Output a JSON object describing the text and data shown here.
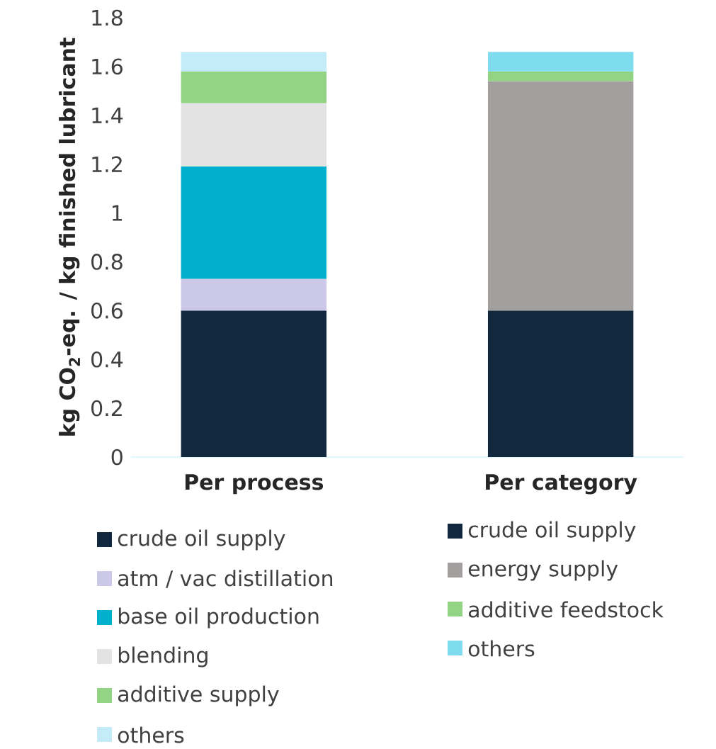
{
  "chart_data": {
    "type": "bar",
    "stacked": true,
    "ylabel": "kg CO$_{2}$-eq. / kg finished lubricant",
    "categories": [
      "Per process",
      "Per category"
    ],
    "series": [
      {
        "name": "crude oil supply",
        "color": "#12283f",
        "values": [
          0.6,
          null
        ]
      },
      {
        "name": "atm / vac distillation",
        "color": "#cbc8e8",
        "values": [
          0.13,
          null
        ]
      },
      {
        "name": "base oil production",
        "color": "#00b0cc",
        "values": [
          0.46,
          null
        ]
      },
      {
        "name": "blending",
        "color": "#e3e3e3",
        "values": [
          0.26,
          null
        ]
      },
      {
        "name": "additive supply",
        "color": "#93d484",
        "values": [
          0.13,
          null
        ]
      },
      {
        "name": "others",
        "color": "#c3ebf8",
        "values": [
          0.08,
          null
        ]
      },
      {
        "name": "crude oil supply",
        "color": "#12283f",
        "values": [
          null,
          0.6
        ]
      },
      {
        "name": "energy supply",
        "color": "#a29f9e",
        "values": [
          null,
          0.94
        ]
      },
      {
        "name": "additive feedstock",
        "color": "#93d484",
        "values": [
          null,
          0.04
        ]
      },
      {
        "name": "others",
        "color": "#7fdcee",
        "values": [
          null,
          0.08
        ]
      }
    ],
    "ylim": [
      0,
      1.8
    ],
    "yticks": [
      0,
      0.2,
      0.4,
      0.6,
      0.8,
      1,
      1.2,
      1.4,
      1.6,
      1.8
    ],
    "grid": false,
    "legend": "bottom"
  }
}
